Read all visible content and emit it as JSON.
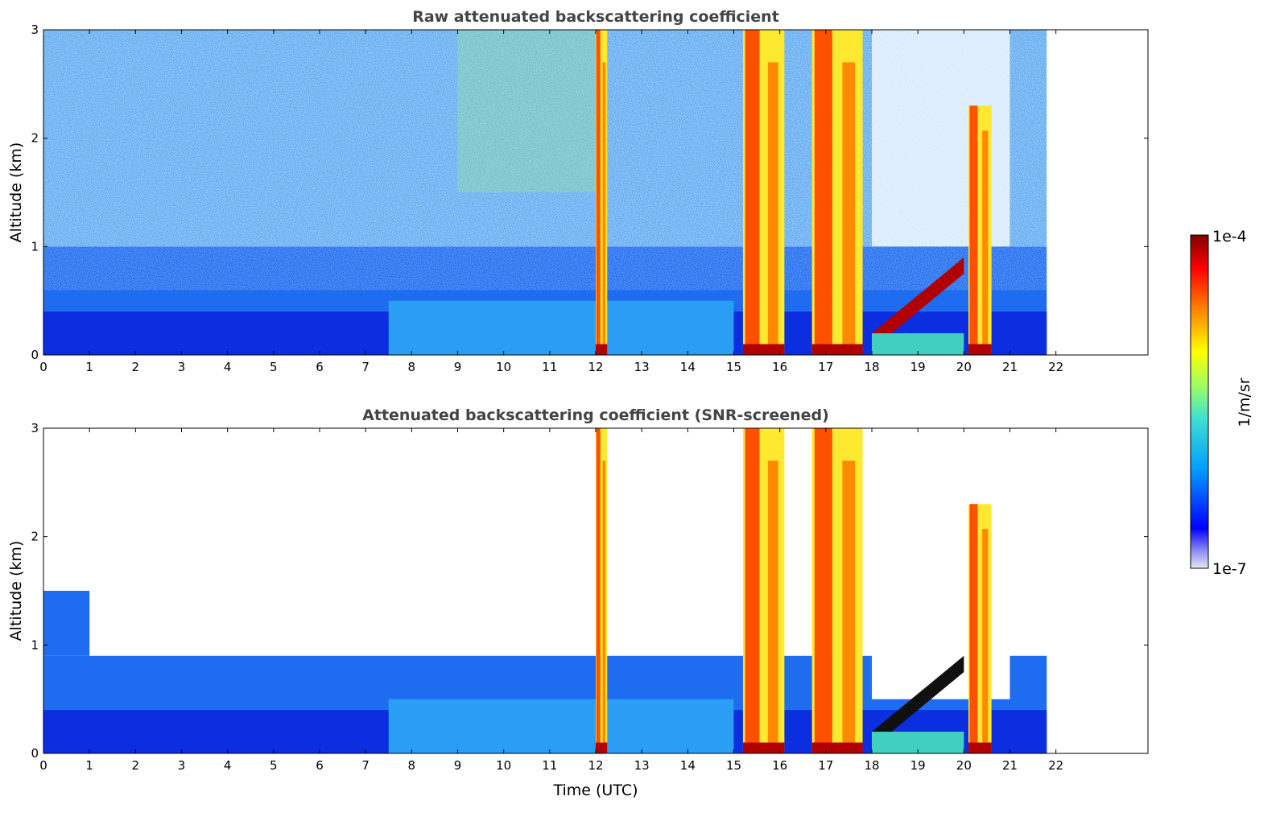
{
  "chart_data": [
    {
      "type": "heatmap",
      "title": "Raw attenuated backscattering coefficient",
      "xlabel": "",
      "ylabel": "Altitude (km)",
      "xlim": [
        0,
        24
      ],
      "ylim": [
        0,
        3
      ],
      "xticks": [
        "0",
        "1",
        "2",
        "3",
        "4",
        "5",
        "6",
        "7",
        "8",
        "9",
        "10",
        "11",
        "12",
        "13",
        "14",
        "15",
        "16",
        "17",
        "18",
        "19",
        "20",
        "21",
        "22"
      ],
      "yticks": [
        "0",
        "1",
        "2",
        "3"
      ],
      "data_end_time": 21.8,
      "screened": false
    },
    {
      "type": "heatmap",
      "title": "Attenuated backscattering coefficient (SNR-screened)",
      "xlabel": "Time (UTC)",
      "ylabel": "Altitude (km)",
      "xlim": [
        0,
        24
      ],
      "ylim": [
        0,
        3
      ],
      "xticks": [
        "0",
        "1",
        "2",
        "3",
        "4",
        "5",
        "6",
        "7",
        "8",
        "9",
        "10",
        "11",
        "12",
        "13",
        "14",
        "15",
        "16",
        "17",
        "18",
        "19",
        "20",
        "21",
        "22"
      ],
      "yticks": [
        "0",
        "1",
        "2",
        "3"
      ],
      "data_end_time": 21.8,
      "screened": true
    }
  ],
  "colorbar": {
    "label": "1/m/sr",
    "max_label": "1e-4",
    "min_label": "1e-7",
    "colormap": "jet",
    "colors": [
      "#e8e8f8",
      "#0000ff",
      "#00a0ff",
      "#40e0d0",
      "#a0ff60",
      "#ffff00",
      "#ff8000",
      "#ff0000",
      "#800000"
    ]
  },
  "features": {
    "vertical_cloud_columns_utc": [
      [
        12.0,
        12.25
      ],
      [
        15.2,
        16.1
      ],
      [
        16.7,
        17.8
      ],
      [
        20.1,
        20.6
      ]
    ],
    "rising_cloud_layer": {
      "start_time": 18.0,
      "end_time": 20.0,
      "start_alt_km": 0.2,
      "end_alt_km": 0.9
    },
    "boundary_layer_top_km": 0.9
  }
}
